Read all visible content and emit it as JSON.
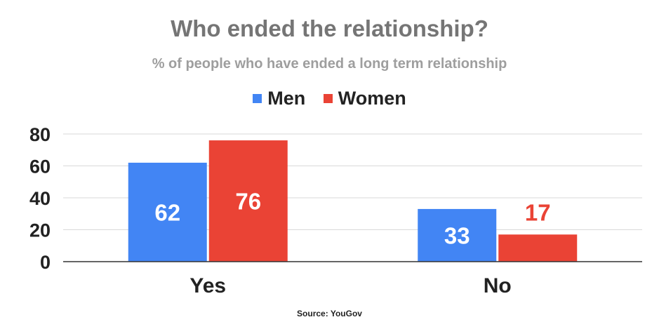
{
  "chart_data": {
    "type": "bar",
    "title": "Who ended the relationship?",
    "subtitle": "% of people who have ended a long term relationship",
    "categories": [
      "Yes",
      "No"
    ],
    "series": [
      {
        "name": "Men",
        "values": [
          62,
          33
        ],
        "color": "#4285f4"
      },
      {
        "name": "Women",
        "values": [
          76,
          17
        ],
        "color": "#ea4335"
      }
    ],
    "data_labels": [
      {
        "series": "Men",
        "values": [
          "62",
          "33"
        ],
        "colors": [
          "#ffffff",
          "#ffffff"
        ]
      },
      {
        "series": "Women",
        "values": [
          "76",
          "17"
        ],
        "colors": [
          "#ffffff",
          "#ea4335"
        ]
      }
    ],
    "ylim": [
      0,
      80
    ],
    "yticks": [
      "0",
      "20",
      "40",
      "60",
      "80"
    ],
    "xlabel": "",
    "ylabel": "",
    "grid": true,
    "legend_position": "top-center",
    "source": "Source: YouGov"
  }
}
